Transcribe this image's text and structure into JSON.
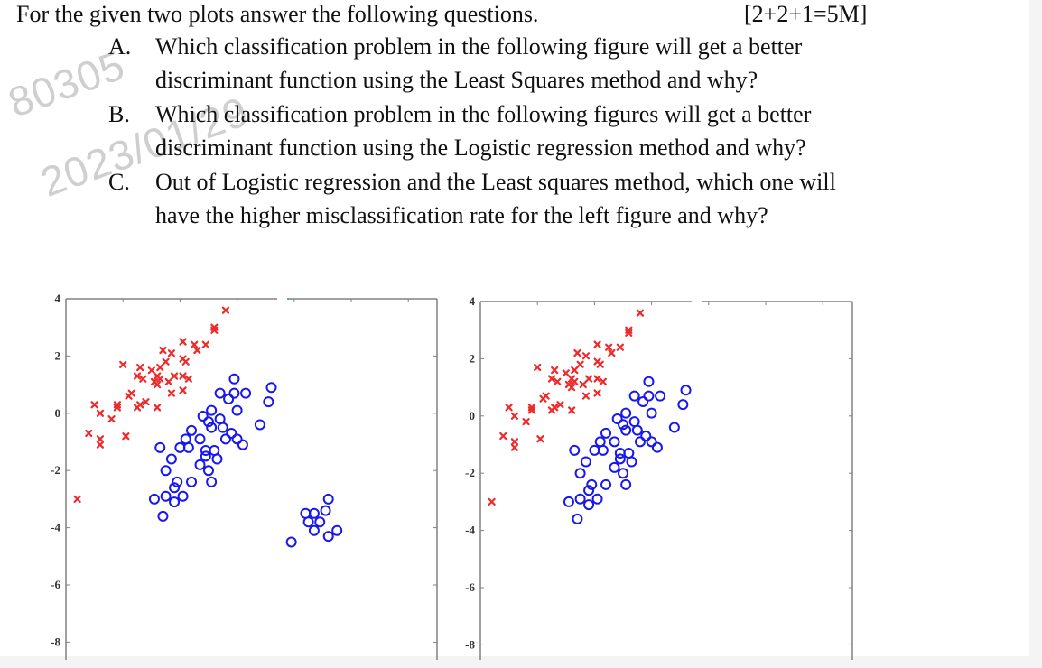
{
  "document": {
    "intro": "For the given two plots answer the following questions.",
    "marks": "[2+2+1=5M]",
    "watermark": {
      "line1": "80305",
      "line2": "2023/01/29"
    },
    "questions": [
      {
        "label": "A.",
        "lines": [
          "Which classification problem in the following figure will get a better",
          "discriminant function using the Least Squares method and why?"
        ]
      },
      {
        "label": "B.",
        "lines": [
          "Which classification problem in the following figures will get a better",
          "discriminant function using the Logistic regression method and why?"
        ]
      },
      {
        "label": "C.",
        "lines": [
          "Out of Logistic regression and the Least squares method, which one will",
          "have the higher misclassification rate for the left figure and why?"
        ]
      }
    ]
  },
  "colors": {
    "class1": "#ee2a2a",
    "class2": "#1818ee",
    "axis": "#808080",
    "background": "#ffffff",
    "outer": "#f4f4f4"
  },
  "chart_data": [
    {
      "type": "scatter",
      "title": "",
      "xlabel": "",
      "ylabel": "",
      "xlim": [
        -4,
        9
      ],
      "ylim": [
        -8.4,
        4
      ],
      "yticks": [
        4,
        2,
        0,
        -2,
        -4,
        -6,
        -8
      ],
      "ytick_labels": [
        "4",
        "2",
        "0",
        "-2",
        "-4",
        "-6",
        "-8"
      ],
      "grid": false,
      "series": [
        {
          "name": "class-1 (red x)",
          "marker": "x",
          "color": "#ee2a2a",
          "points": [
            [
              1.6,
              3.6
            ],
            [
              1.2,
              3.0
            ],
            [
              1.2,
              2.9
            ],
            [
              0.9,
              2.4
            ],
            [
              0.6,
              2.2
            ],
            [
              0.5,
              2.4
            ],
            [
              0.1,
              2.5
            ],
            [
              0.1,
              1.9
            ],
            [
              0.2,
              1.8
            ],
            [
              -0.3,
              2.1
            ],
            [
              -0.6,
              2.2
            ],
            [
              -0.5,
              1.8
            ],
            [
              -0.7,
              1.6
            ],
            [
              -0.8,
              1.3
            ],
            [
              -1.0,
              1.5
            ],
            [
              -1.4,
              1.6
            ],
            [
              -1.5,
              1.3
            ],
            [
              -1.3,
              1.2
            ],
            [
              -2.0,
              1.7
            ],
            [
              -0.8,
              1.0
            ],
            [
              -0.4,
              1.1
            ],
            [
              -0.2,
              1.3
            ],
            [
              0.1,
              1.3
            ],
            [
              0.3,
              1.2
            ],
            [
              0.1,
              0.8
            ],
            [
              -0.3,
              0.7
            ],
            [
              -0.9,
              1.1
            ],
            [
              -0.7,
              1.2
            ],
            [
              -1.7,
              0.7
            ],
            [
              -1.8,
              0.6
            ],
            [
              -1.4,
              0.3
            ],
            [
              -1.2,
              0.4
            ],
            [
              -1.5,
              0.2
            ],
            [
              -0.8,
              0.2
            ],
            [
              -2.2,
              0.3
            ],
            [
              -2.2,
              0.2
            ],
            [
              -3.0,
              0.3
            ],
            [
              -2.8,
              0.0
            ],
            [
              -2.4,
              -0.2
            ],
            [
              -3.2,
              -0.7
            ],
            [
              -2.8,
              -0.9
            ],
            [
              -2.8,
              -1.1
            ],
            [
              -1.9,
              -0.8
            ],
            [
              -3.6,
              -3.0
            ]
          ]
        },
        {
          "name": "class-2 (blue o)",
          "marker": "o",
          "color": "#1818ee",
          "points": [
            [
              1.9,
              1.2
            ],
            [
              1.4,
              0.7
            ],
            [
              1.7,
              0.5
            ],
            [
              1.9,
              0.7
            ],
            [
              2.3,
              0.7
            ],
            [
              2.0,
              0.1
            ],
            [
              3.2,
              0.9
            ],
            [
              3.1,
              0.4
            ],
            [
              2.8,
              -0.4
            ],
            [
              1.1,
              0.1
            ],
            [
              0.8,
              -0.1
            ],
            [
              1.0,
              -0.3
            ],
            [
              1.4,
              -0.2
            ],
            [
              1.1,
              -0.5
            ],
            [
              1.5,
              -0.5
            ],
            [
              1.6,
              -0.9
            ],
            [
              1.8,
              -0.7
            ],
            [
              2.0,
              -0.9
            ],
            [
              2.2,
              -1.1
            ],
            [
              0.4,
              -0.6
            ],
            [
              0.2,
              -0.9
            ],
            [
              0.7,
              -0.9
            ],
            [
              0.0,
              -1.2
            ],
            [
              0.3,
              -1.2
            ],
            [
              -0.7,
              -1.2
            ],
            [
              0.9,
              -1.3
            ],
            [
              1.2,
              -1.3
            ],
            [
              0.9,
              -1.5
            ],
            [
              1.3,
              -1.6
            ],
            [
              0.7,
              -1.8
            ],
            [
              1.0,
              -2.0
            ],
            [
              -0.3,
              -1.6
            ],
            [
              -0.5,
              -2.0
            ],
            [
              1.1,
              -2.4
            ],
            [
              0.4,
              -2.4
            ],
            [
              -0.1,
              -2.4
            ],
            [
              -0.2,
              -2.6
            ],
            [
              0.1,
              -2.9
            ],
            [
              -0.5,
              -2.9
            ],
            [
              -0.9,
              -3.0
            ],
            [
              -0.2,
              -3.1
            ],
            [
              -0.6,
              -3.6
            ],
            [
              5.2,
              -3.0
            ],
            [
              4.4,
              -3.5
            ],
            [
              4.7,
              -3.5
            ],
            [
              5.1,
              -3.4
            ],
            [
              4.5,
              -3.8
            ],
            [
              4.9,
              -3.8
            ],
            [
              4.7,
              -4.1
            ],
            [
              5.2,
              -4.3
            ],
            [
              5.5,
              -4.1
            ],
            [
              3.9,
              -4.5
            ]
          ]
        }
      ]
    },
    {
      "type": "scatter",
      "title": "",
      "xlabel": "",
      "ylabel": "",
      "xlim": [
        -4,
        9
      ],
      "ylim": [
        -8.4,
        4
      ],
      "yticks": [
        4,
        2,
        0,
        -2,
        -4,
        -6,
        -8
      ],
      "ytick_labels": [
        "4",
        "2",
        "0",
        "-2",
        "-4",
        "-6",
        "-8"
      ],
      "grid": false,
      "series": [
        {
          "name": "class-1 (red x)",
          "marker": "x",
          "color": "#ee2a2a",
          "points": [
            [
              1.6,
              3.6
            ],
            [
              1.2,
              3.0
            ],
            [
              1.2,
              2.9
            ],
            [
              0.9,
              2.4
            ],
            [
              0.6,
              2.2
            ],
            [
              0.5,
              2.4
            ],
            [
              0.1,
              2.5
            ],
            [
              0.1,
              1.9
            ],
            [
              0.2,
              1.8
            ],
            [
              -0.3,
              2.1
            ],
            [
              -0.6,
              2.2
            ],
            [
              -0.5,
              1.8
            ],
            [
              -0.7,
              1.6
            ],
            [
              -0.8,
              1.3
            ],
            [
              -1.0,
              1.5
            ],
            [
              -1.4,
              1.6
            ],
            [
              -1.5,
              1.3
            ],
            [
              -1.3,
              1.2
            ],
            [
              -2.0,
              1.7
            ],
            [
              -0.8,
              1.0
            ],
            [
              -0.4,
              1.1
            ],
            [
              -0.2,
              1.3
            ],
            [
              0.1,
              1.3
            ],
            [
              0.3,
              1.2
            ],
            [
              0.1,
              0.8
            ],
            [
              -0.3,
              0.7
            ],
            [
              -0.9,
              1.1
            ],
            [
              -0.7,
              1.2
            ],
            [
              -1.7,
              0.7
            ],
            [
              -1.8,
              0.6
            ],
            [
              -1.4,
              0.3
            ],
            [
              -1.2,
              0.4
            ],
            [
              -1.5,
              0.2
            ],
            [
              -0.8,
              0.2
            ],
            [
              -2.2,
              0.3
            ],
            [
              -2.2,
              0.2
            ],
            [
              -3.0,
              0.3
            ],
            [
              -2.8,
              0.0
            ],
            [
              -2.4,
              -0.2
            ],
            [
              -3.2,
              -0.7
            ],
            [
              -2.8,
              -0.9
            ],
            [
              -2.8,
              -1.1
            ],
            [
              -1.9,
              -0.8
            ],
            [
              -3.6,
              -3.0
            ]
          ]
        },
        {
          "name": "class-2 (blue o)",
          "marker": "o",
          "color": "#1818ee",
          "points": [
            [
              1.9,
              1.2
            ],
            [
              1.4,
              0.7
            ],
            [
              1.7,
              0.5
            ],
            [
              1.9,
              0.7
            ],
            [
              2.3,
              0.7
            ],
            [
              2.0,
              0.1
            ],
            [
              3.2,
              0.9
            ],
            [
              3.1,
              0.4
            ],
            [
              2.8,
              -0.4
            ],
            [
              1.1,
              0.1
            ],
            [
              0.8,
              -0.1
            ],
            [
              1.0,
              -0.3
            ],
            [
              1.4,
              -0.2
            ],
            [
              1.1,
              -0.5
            ],
            [
              1.5,
              -0.5
            ],
            [
              1.6,
              -0.9
            ],
            [
              1.8,
              -0.7
            ],
            [
              2.0,
              -0.9
            ],
            [
              2.2,
              -1.1
            ],
            [
              0.4,
              -0.6
            ],
            [
              0.2,
              -0.9
            ],
            [
              0.7,
              -0.9
            ],
            [
              0.0,
              -1.2
            ],
            [
              0.3,
              -1.2
            ],
            [
              -0.7,
              -1.2
            ],
            [
              0.9,
              -1.3
            ],
            [
              1.2,
              -1.3
            ],
            [
              0.9,
              -1.5
            ],
            [
              1.3,
              -1.6
            ],
            [
              0.7,
              -1.8
            ],
            [
              1.0,
              -2.0
            ],
            [
              -0.3,
              -1.6
            ],
            [
              -0.5,
              -2.0
            ],
            [
              1.1,
              -2.4
            ],
            [
              0.4,
              -2.4
            ],
            [
              -0.1,
              -2.4
            ],
            [
              -0.2,
              -2.6
            ],
            [
              0.1,
              -2.9
            ],
            [
              -0.5,
              -2.9
            ],
            [
              -0.9,
              -3.0
            ],
            [
              -0.2,
              -3.1
            ],
            [
              -0.6,
              -3.6
            ]
          ]
        }
      ]
    }
  ]
}
